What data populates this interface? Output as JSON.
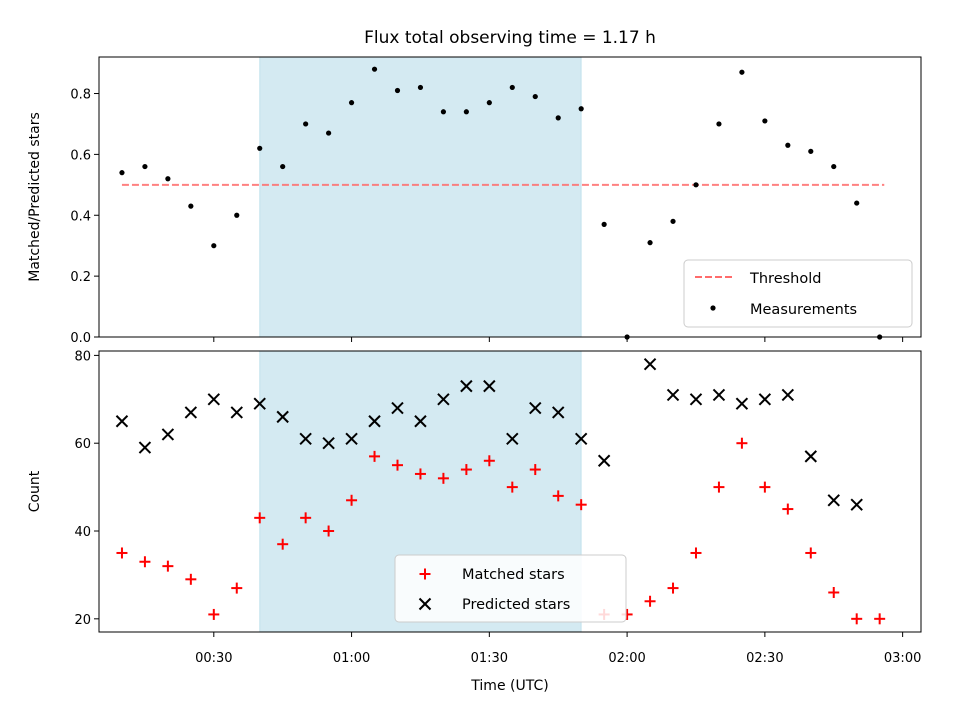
{
  "chart_data": [
    {
      "type": "scatter",
      "title": "Flux total observing time = 1.17 h",
      "ylabel": "Matched/Predicted stars",
      "ylim": [
        0,
        0.92
      ],
      "yticks": [
        "0.0",
        "0.2",
        "0.4",
        "0.6",
        "0.8"
      ],
      "xlim": [
        "00:05",
        "03:04"
      ],
      "highlight_span": [
        "00:40",
        "01:50"
      ],
      "highlight_color": "#add8e6",
      "threshold": {
        "name": "Threshold",
        "value": 0.5,
        "x_start": "00:10",
        "x_end": "02:56",
        "color": "#ff6b6b"
      },
      "series": [
        {
          "name": "Measurements",
          "color": "#000000",
          "x": [
            "00:10",
            "00:15",
            "00:20",
            "00:25",
            "00:30",
            "00:35",
            "00:40",
            "00:45",
            "00:50",
            "00:55",
            "01:00",
            "01:05",
            "01:10",
            "01:15",
            "01:20",
            "01:25",
            "01:30",
            "01:35",
            "01:40",
            "01:45",
            "01:50",
            "01:55",
            "02:00",
            "02:05",
            "02:10",
            "02:15",
            "02:20",
            "02:25",
            "02:30",
            "02:35",
            "02:40",
            "02:45",
            "02:50",
            "02:55"
          ],
          "y": [
            0.54,
            0.56,
            0.52,
            0.43,
            0.3,
            0.4,
            0.62,
            0.56,
            0.7,
            0.67,
            0.77,
            0.88,
            0.81,
            0.82,
            0.74,
            0.74,
            0.77,
            0.82,
            0.79,
            0.72,
            0.75,
            0.37,
            0.0,
            0.31,
            0.38,
            0.5,
            0.7,
            0.87,
            0.71,
            0.63,
            0.61,
            0.56,
            0.44,
            0.0
          ]
        }
      ],
      "legend_position": "lower-right"
    },
    {
      "type": "scatter",
      "xlabel": "Time (UTC)",
      "ylabel": "Count",
      "ylim": [
        17,
        81
      ],
      "yticks": [
        "20",
        "40",
        "60",
        "80"
      ],
      "xticks": [
        "00:30",
        "01:00",
        "01:30",
        "02:00",
        "02:30",
        "03:00"
      ],
      "xlim": [
        "00:05",
        "03:04"
      ],
      "highlight_span": [
        "00:40",
        "01:50"
      ],
      "series": [
        {
          "name": "Matched stars",
          "marker": "plus",
          "color": "#ff0000",
          "x": [
            "00:10",
            "00:15",
            "00:20",
            "00:25",
            "00:30",
            "00:35",
            "00:40",
            "00:45",
            "00:50",
            "00:55",
            "01:00",
            "01:05",
            "01:10",
            "01:15",
            "01:20",
            "01:25",
            "01:30",
            "01:35",
            "01:40",
            "01:45",
            "01:50",
            "01:55",
            "02:00",
            "02:05",
            "02:10",
            "02:15",
            "02:20",
            "02:25",
            "02:30",
            "02:35",
            "02:40",
            "02:45",
            "02:50",
            "02:55"
          ],
          "y": [
            35,
            33,
            32,
            29,
            21,
            27,
            43,
            37,
            43,
            40,
            47,
            57,
            55,
            53,
            52,
            54,
            56,
            50,
            54,
            48,
            46,
            21,
            21,
            24,
            27,
            35,
            50,
            60,
            50,
            45,
            35,
            26,
            20,
            20
          ]
        },
        {
          "name": "Predicted stars",
          "marker": "x",
          "color": "#000000",
          "x": [
            "00:10",
            "00:15",
            "00:20",
            "00:25",
            "00:30",
            "00:35",
            "00:40",
            "00:45",
            "00:50",
            "00:55",
            "01:00",
            "01:05",
            "01:10",
            "01:15",
            "01:20",
            "01:25",
            "01:30",
            "01:35",
            "01:40",
            "01:45",
            "01:50",
            "01:55",
            "02:05",
            "02:10",
            "02:15",
            "02:20",
            "02:25",
            "02:30",
            "02:35",
            "02:40",
            "02:45",
            "02:50"
          ],
          "y": [
            65,
            59,
            62,
            67,
            70,
            67,
            69,
            66,
            61,
            60,
            61,
            65,
            68,
            65,
            70,
            73,
            73,
            61,
            68,
            67,
            61,
            56,
            78,
            71,
            70,
            71,
            69,
            70,
            71,
            57,
            47,
            46
          ]
        }
      ],
      "legend_position": "lower-center"
    }
  ]
}
